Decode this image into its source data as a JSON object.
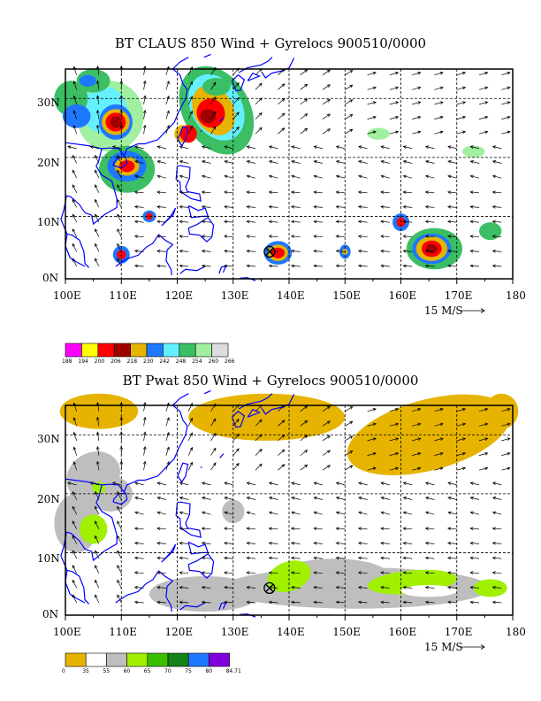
{
  "panels": [
    {
      "title": "BT CLAUS 850 Wind + Gyrelocs 900510/0000",
      "xticks": [
        "100E",
        "110E",
        "120E",
        "130E",
        "140E",
        "150E",
        "160E",
        "170E",
        "180"
      ],
      "yticks": [
        "30N",
        "20N",
        "10N",
        "0N"
      ],
      "scale_label": "15 M/S",
      "legend": {
        "colors": [
          "#ff00ff",
          "#ffff00",
          "#ff0000",
          "#a00000",
          "#e6b400",
          "#1e78ff",
          "#64f0ff",
          "#3cbe64",
          "#a0f0a0",
          "#dcdcdc"
        ],
        "labels": [
          "188",
          "194",
          "200",
          "206",
          "218",
          "230",
          "242",
          "248",
          "254",
          "260",
          "266"
        ]
      }
    },
    {
      "title": "BT Pwat 850 Wind + Gyrelocs 900510/0000",
      "xticks": [
        "100E",
        "110E",
        "120E",
        "130E",
        "140E",
        "150E",
        "160E",
        "170E",
        "180"
      ],
      "yticks": [
        "30N",
        "20N",
        "10N",
        "0N"
      ],
      "scale_label": "15 M/S",
      "legend": {
        "colors": [
          "#e6b400",
          "#ffffff",
          "#bebebe",
          "#a0f000",
          "#3cbe00",
          "#148214",
          "#1e78ff",
          "#8200dc"
        ],
        "labels": [
          "0",
          "35",
          "55",
          "60",
          "65",
          "70",
          "75",
          "80",
          "84.71"
        ]
      }
    }
  ],
  "map_colors": {
    "coast": "#0000ff",
    "frame": "#000000",
    "grid": "#000000"
  }
}
